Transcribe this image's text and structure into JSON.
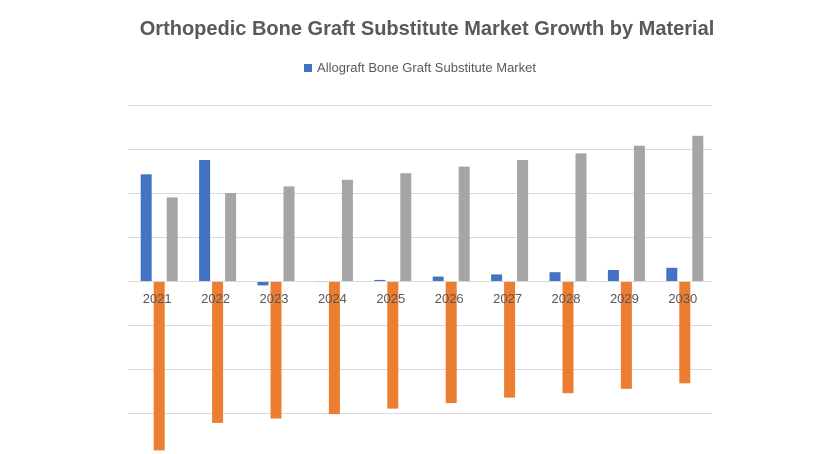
{
  "chart_data": {
    "type": "bar",
    "title": "Orthopedic Bone Graft Substitute Market Growth by Material",
    "xlabel": "",
    "ylabel": "",
    "ylim": [
      -8,
      8
    ],
    "grid": true,
    "legend_position": "top-center",
    "categories": [
      "2021",
      "2022",
      "2023",
      "2024",
      "2025",
      "2026",
      "2027",
      "2028",
      "2029",
      "2030"
    ],
    "series": [
      {
        "name": "Allograft Bone Graft Substitute Market",
        "color": "#4472C4",
        "show_in_legend": true,
        "values": [
          4.85,
          5.5,
          -0.2,
          -0.05,
          0.05,
          0.2,
          0.3,
          0.4,
          0.5,
          0.6
        ]
      },
      {
        "name": "",
        "color": "#ED7D31",
        "show_in_legend": false,
        "values": [
          -7.7,
          -6.45,
          -6.25,
          -6.05,
          -5.8,
          -5.55,
          -5.3,
          -5.1,
          -4.9,
          -4.65
        ]
      },
      {
        "name": "",
        "color": "#A5A5A5",
        "show_in_legend": false,
        "values": [
          3.8,
          4.0,
          4.3,
          4.6,
          4.9,
          5.2,
          5.5,
          5.8,
          6.15,
          6.6
        ]
      }
    ]
  }
}
